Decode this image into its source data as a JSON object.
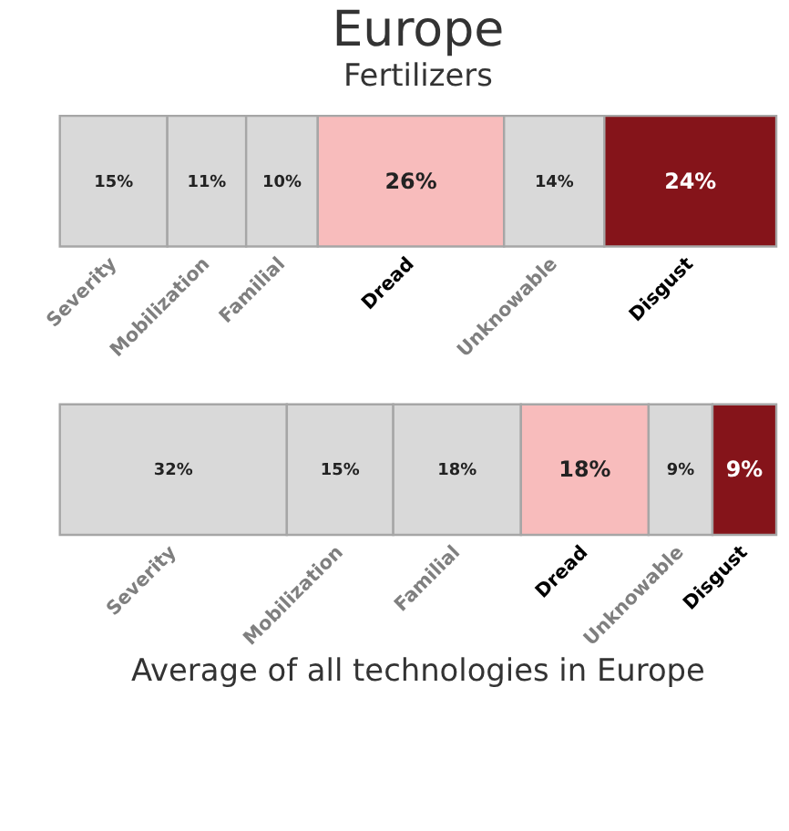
{
  "chart_data": [
    {
      "type": "bar",
      "orientation": "horizontal",
      "stacked": true,
      "title": "Europe",
      "subtitle": "Fertilizers",
      "categories": [
        null
      ],
      "series": [
        {
          "name": "Severity",
          "color": "#d9d9d9",
          "values": [
            15
          ],
          "value_labels": [
            "15%"
          ]
        },
        {
          "name": "Mobilization",
          "color": "#d9d9d9",
          "values": [
            11
          ],
          "value_labels": [
            "11%"
          ]
        },
        {
          "name": "Familial",
          "color": "#d9d9d9",
          "values": [
            10
          ],
          "value_labels": [
            "10%"
          ]
        },
        {
          "name": "Dread",
          "color": "#f8bcbc",
          "values": [
            26
          ],
          "value_labels": [
            "26%"
          ]
        },
        {
          "name": "Unknowable",
          "color": "#d9d9d9",
          "values": [
            14
          ],
          "value_labels": [
            "14%"
          ]
        },
        {
          "name": "Disgust",
          "color": "#85141a",
          "values": [
            24
          ],
          "value_labels": [
            "24%"
          ]
        }
      ]
    },
    {
      "type": "bar",
      "orientation": "horizontal",
      "stacked": true,
      "title": "Average of all technologies in Europe",
      "categories": [
        null
      ],
      "series": [
        {
          "name": "Severity",
          "color": "#d9d9d9",
          "values": [
            32
          ],
          "value_labels": [
            "32%"
          ]
        },
        {
          "name": "Mobilization",
          "color": "#d9d9d9",
          "values": [
            15
          ],
          "value_labels": [
            "15%"
          ]
        },
        {
          "name": "Familial",
          "color": "#d9d9d9",
          "values": [
            18
          ],
          "value_labels": [
            "18%"
          ]
        },
        {
          "name": "Dread",
          "color": "#f8bcbc",
          "values": [
            18
          ],
          "value_labels": [
            "18%"
          ]
        },
        {
          "name": "Unknowable",
          "color": "#d9d9d9",
          "values": [
            9
          ],
          "value_labels": [
            "9%"
          ]
        },
        {
          "name": "Disgust",
          "color": "#85141a",
          "values": [
            9
          ],
          "value_labels": [
            "9%"
          ]
        }
      ]
    }
  ]
}
